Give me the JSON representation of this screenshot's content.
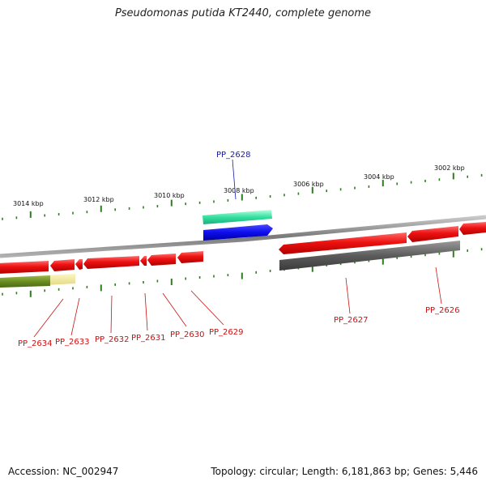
{
  "title": "Pseudomonas putida KT2440, complete genome",
  "accession": "Accession: NC_002947",
  "summary": "Topology: circular; Length: 6,181,863 bp; Genes: 5,446",
  "colors": {
    "backbone": "#8c8c8c",
    "forward_gene": "#1010ee",
    "forward_feature": "#33e0a0",
    "reverse_gene": "#ee1111",
    "reverse_feature": "#6a6a6a",
    "feature_olive": "#6b8e23",
    "feature_khaki": "#e8e08a",
    "tick": "#2e7d1f",
    "label_forward": "#1a1aa8",
    "label_reverse": "#cc1111"
  },
  "ticks": [
    {
      "label": "3014 kbp",
      "major": true
    },
    {
      "label": "3012 kbp",
      "major": true
    },
    {
      "label": "3010 kbp",
      "major": true
    },
    {
      "label": "3008 kbp",
      "major": true
    },
    {
      "label": "3006 kbp",
      "major": true
    },
    {
      "label": "3004 kbp",
      "major": true
    },
    {
      "label": "3002 kbp",
      "major": true
    }
  ],
  "genes": [
    {
      "name": "PP_2628",
      "strand": "+"
    },
    {
      "name": "PP_2627",
      "strand": "-"
    },
    {
      "name": "PP_2626",
      "strand": "-"
    },
    {
      "name": "PP_2629",
      "strand": "-"
    },
    {
      "name": "PP_2630",
      "strand": "-"
    },
    {
      "name": "PP_2631",
      "strand": "-"
    },
    {
      "name": "PP_2632",
      "strand": "-"
    },
    {
      "name": "PP_2633",
      "strand": "-"
    },
    {
      "name": "PP_2634",
      "strand": "-"
    }
  ]
}
